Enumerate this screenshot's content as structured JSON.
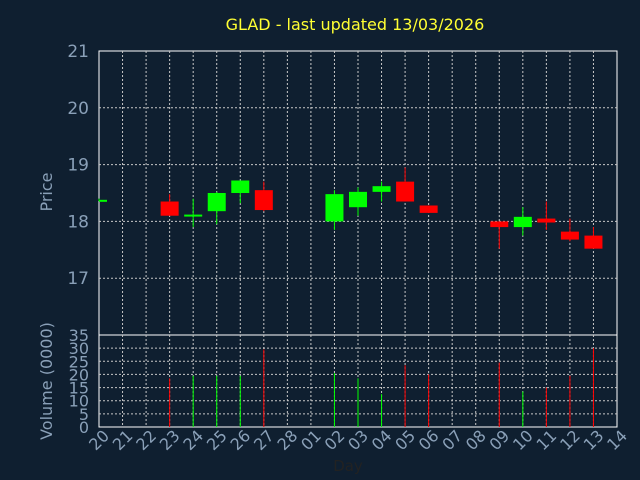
{
  "chart_data": {
    "type": "candlestick",
    "title": "GLAD - last updated 13/03/2026",
    "xlabel": "Day",
    "price_panel": {
      "ylabel": "Price",
      "ylim": [
        16.0,
        21.0
      ],
      "yticks": [
        "21",
        "20",
        "19",
        "18",
        "17"
      ],
      "yticks_values": [
        21,
        20,
        19,
        18,
        17
      ]
    },
    "volume_panel": {
      "ylabel": "Volume (0000)",
      "ylim": [
        0,
        35
      ],
      "yticks": [
        "35",
        "30",
        "25",
        "20",
        "15",
        "10",
        "5",
        "0"
      ],
      "yticks_values": [
        35,
        30,
        25,
        20,
        15,
        10,
        5,
        0
      ]
    },
    "x_ticks": [
      "20",
      "21",
      "22",
      "23",
      "24",
      "25",
      "26",
      "27",
      "28",
      "01",
      "02",
      "03",
      "04",
      "05",
      "06",
      "07",
      "08",
      "09",
      "10",
      "11",
      "12",
      "13",
      "14"
    ],
    "up_color": "#00ff00",
    "down_color": "#ff0000",
    "candles": [
      {
        "day": "20",
        "index": 0,
        "open": 18.38,
        "close": 18.38,
        "high": 18.4,
        "low": 18.36,
        "volume": 0,
        "direction": "up"
      },
      {
        "day": "23",
        "index": 3,
        "open": 18.35,
        "close": 18.1,
        "high": 18.48,
        "low": 18.1,
        "volume": 18.5,
        "direction": "down"
      },
      {
        "day": "24",
        "index": 4,
        "open": 18.1,
        "close": 18.12,
        "high": 18.4,
        "low": 17.9,
        "volume": 19.5,
        "direction": "up"
      },
      {
        "day": "25",
        "index": 5,
        "open": 18.18,
        "close": 18.5,
        "high": 18.52,
        "low": 17.95,
        "volume": 19.5,
        "direction": "up"
      },
      {
        "day": "26",
        "index": 6,
        "open": 18.5,
        "close": 18.72,
        "high": 18.72,
        "low": 18.32,
        "volume": 19.5,
        "direction": "up"
      },
      {
        "day": "27",
        "index": 7,
        "open": 18.55,
        "close": 18.2,
        "high": 18.7,
        "low": 18.18,
        "volume": 29.5,
        "direction": "down"
      },
      {
        "day": "02",
        "index": 10,
        "open": 18.0,
        "close": 18.48,
        "high": 18.55,
        "low": 17.85,
        "volume": 20.5,
        "direction": "up"
      },
      {
        "day": "03",
        "index": 11,
        "open": 18.25,
        "close": 18.52,
        "high": 18.6,
        "low": 18.1,
        "volume": 18.5,
        "direction": "up"
      },
      {
        "day": "04",
        "index": 12,
        "open": 18.52,
        "close": 18.62,
        "high": 18.7,
        "low": 18.35,
        "volume": 12.5,
        "direction": "up"
      },
      {
        "day": "05",
        "index": 13,
        "open": 18.7,
        "close": 18.35,
        "high": 18.95,
        "low": 18.35,
        "volume": 23.5,
        "direction": "down"
      },
      {
        "day": "06",
        "index": 14,
        "open": 18.28,
        "close": 18.15,
        "high": 18.28,
        "low": 18.15,
        "volume": 20.0,
        "direction": "down"
      },
      {
        "day": "09",
        "index": 17,
        "open": 18.0,
        "close": 17.9,
        "high": 18.0,
        "low": 17.52,
        "volume": 24.5,
        "direction": "down"
      },
      {
        "day": "10",
        "index": 18,
        "open": 17.9,
        "close": 18.08,
        "high": 18.25,
        "low": 17.75,
        "volume": 13.5,
        "direction": "up"
      },
      {
        "day": "11",
        "index": 19,
        "open": 18.05,
        "close": 17.98,
        "high": 18.35,
        "low": 17.85,
        "volume": 15.0,
        "direction": "down"
      },
      {
        "day": "12",
        "index": 20,
        "open": 17.82,
        "close": 17.68,
        "high": 18.05,
        "low": 17.65,
        "volume": 19.5,
        "direction": "down"
      },
      {
        "day": "13",
        "index": 21,
        "open": 17.75,
        "close": 17.52,
        "high": 17.9,
        "low": 17.52,
        "volume": 30.0,
        "direction": "down"
      }
    ]
  }
}
